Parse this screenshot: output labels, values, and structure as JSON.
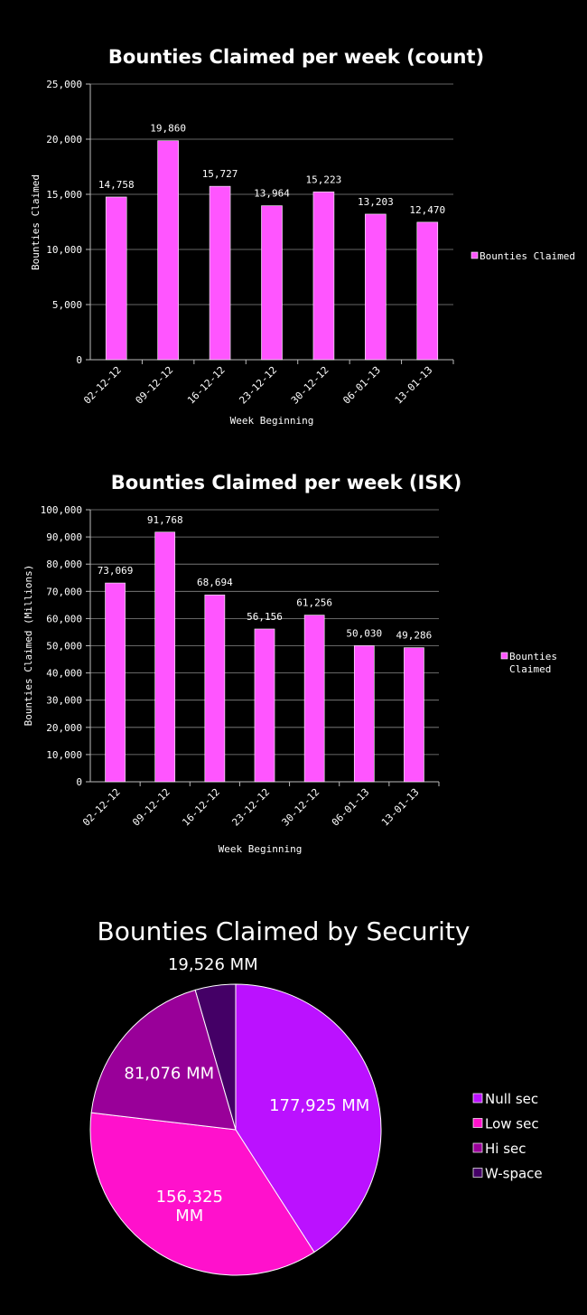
{
  "chart_data": [
    {
      "type": "bar",
      "title": "Bounties Claimed per week (count)",
      "xlabel": "Week Beginning",
      "ylabel": "Bounties Claimed",
      "categories": [
        "02-12-12",
        "09-12-12",
        "16-12-12",
        "23-12-12",
        "30-12-12",
        "06-01-13",
        "13-01-13"
      ],
      "series": [
        {
          "name": "Bounties Claimed",
          "values": [
            14758,
            19860,
            15727,
            13964,
            15223,
            13203,
            12470
          ],
          "value_labels": [
            "14,758",
            "19,860",
            "15,727",
            "13,964",
            "15,223",
            "13,203",
            "12,470"
          ]
        }
      ],
      "ylim": [
        0,
        25000
      ],
      "yticks": [
        "0",
        "5,000",
        "10,000",
        "15,000",
        "20,000",
        "25,000"
      ],
      "grid": true,
      "legend": "right",
      "color": "#ff55ff"
    },
    {
      "type": "bar",
      "title": "Bounties Claimed per week (ISK)",
      "xlabel": "Week Beginning",
      "ylabel": "Bounties Claimed (Millions)",
      "categories": [
        "02-12-12",
        "09-12-12",
        "16-12-12",
        "23-12-12",
        "30-12-12",
        "06-01-13",
        "13-01-13"
      ],
      "series": [
        {
          "name": "Bounties Claimed",
          "values": [
            73069,
            91768,
            68694,
            56156,
            61256,
            50030,
            49286
          ],
          "value_labels": [
            "73,069",
            "91,768",
            "68,694",
            "56,156",
            "61,256",
            "50,030",
            "49,286"
          ]
        }
      ],
      "ylim": [
        0,
        100000
      ],
      "yticks": [
        "0",
        "10,000",
        "20,000",
        "30,000",
        "40,000",
        "50,000",
        "60,000",
        "70,000",
        "80,000",
        "90,000",
        "100,000"
      ],
      "grid": true,
      "legend": "right",
      "color": "#ff55ff"
    },
    {
      "type": "pie",
      "title": "Bounties Claimed by Security",
      "slices": [
        {
          "name": "Null sec",
          "value": 177925,
          "label": "177,925 MM",
          "color": "#bb11ff"
        },
        {
          "name": "Low sec",
          "value": 156325,
          "label": "156,325 MM",
          "color": "#ff11cc"
        },
        {
          "name": "Hi sec",
          "value": 81076,
          "label": "81,076 MM",
          "color": "#990099"
        },
        {
          "name": "W-space",
          "value": 19526,
          "label": "19,526 MM",
          "color": "#440066"
        }
      ],
      "legend": "right"
    }
  ]
}
